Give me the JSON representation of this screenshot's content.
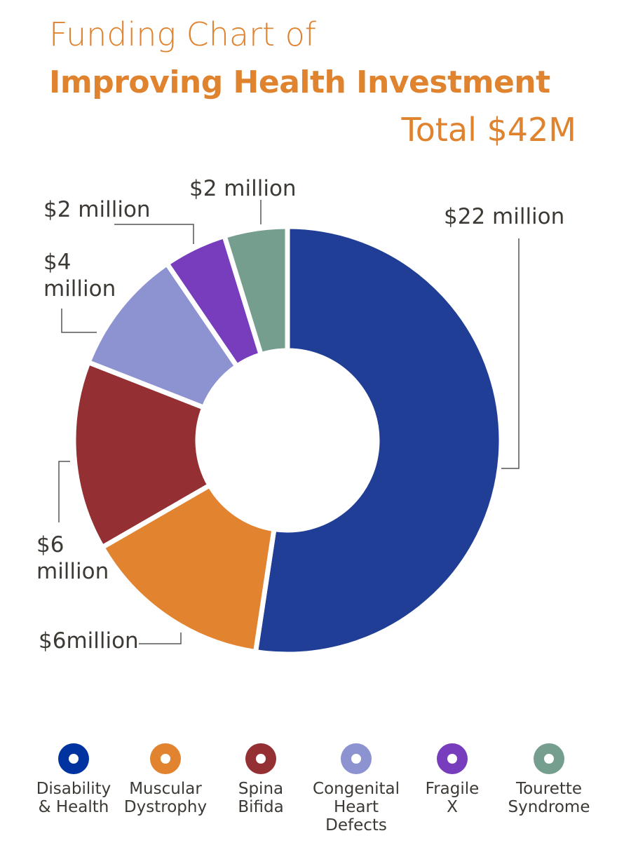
{
  "chart_data": {
    "type": "pie",
    "variant": "donut",
    "title": "Funding Chart of",
    "subtitle": "Improving Health Investment",
    "total_label": "Total $42M",
    "unit": "million USD",
    "categories": [
      "Disability & Health",
      "Muscular Dystrophy",
      "Spina Bifida",
      "Congenital Heart Defects",
      "Fragile X",
      "Tourette Syndrome"
    ],
    "values": [
      22,
      6,
      6,
      4,
      2,
      2
    ],
    "labels": [
      "$22 million",
      "$6million",
      "$6\nmillion",
      "$4\nmillion",
      "$2 million",
      "$2 million"
    ],
    "colors": [
      "#213e96",
      "#e2832f",
      "#943034",
      "#8d93d0",
      "#773dbd",
      "#769e8f"
    ],
    "legend_colors": [
      "#0033a0",
      "#e2832f",
      "#943034",
      "#8d93d0",
      "#773dbd",
      "#769e8f"
    ],
    "legend_labels": [
      "Disability\n& Health",
      "Muscular\nDystrophy",
      "Spina\nBifida",
      "Congenital\nHeart\nDefects",
      "Fragile\nX",
      "Tourette\nSyndrome"
    ],
    "legend_position": "bottom"
  }
}
